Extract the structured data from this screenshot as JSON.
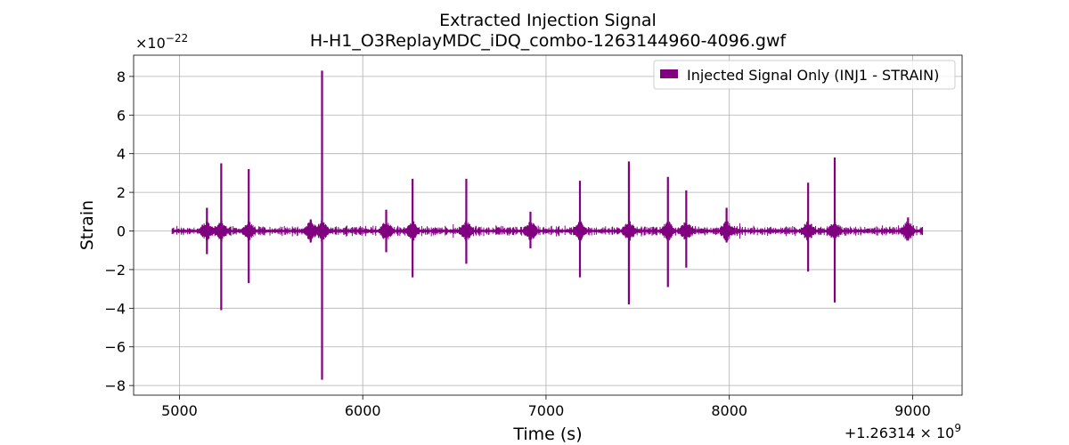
{
  "chart_data": {
    "type": "line",
    "title": "Extracted Injection Signal",
    "subtitle": "H-H1_O3ReplayMDC_iDQ_combo-1263144960-4096.gwf",
    "xlabel": "Time (s)",
    "ylabel": "Strain",
    "x_offset_label": "+1.26314 × 10^9",
    "y_scale_label": "×10^−22",
    "xlim": [
      4750,
      9270
    ],
    "ylim": [
      -8.5,
      9.1
    ],
    "xticks": [
      5000,
      6000,
      7000,
      8000,
      9000
    ],
    "xtick_labels": [
      "5000",
      "6000",
      "7000",
      "8000",
      "9000"
    ],
    "yticks": [
      -8,
      -6,
      -4,
      -2,
      0,
      2,
      4,
      6,
      8
    ],
    "ytick_labels": [
      "−8",
      "−6",
      "−4",
      "−2",
      "0",
      "2",
      "4",
      "6",
      "8"
    ],
    "grid": true,
    "legend_position": "top-right",
    "series": [
      {
        "name": "Injected Signal Only (INJ1 - STRAIN)",
        "color": "#800080",
        "x_range": [
          4960,
          9056
        ],
        "baseline_amplitude": 0.3,
        "spikes": [
          {
            "x": 5150,
            "max": 1.2,
            "min": -1.2
          },
          {
            "x": 5228,
            "max": 3.5,
            "min": -4.1
          },
          {
            "x": 5378,
            "max": 3.2,
            "min": -2.7
          },
          {
            "x": 5716,
            "max": 0.6,
            "min": -0.6
          },
          {
            "x": 5778,
            "max": 8.3,
            "min": -7.7
          },
          {
            "x": 6128,
            "max": 1.1,
            "min": -1.1
          },
          {
            "x": 6272,
            "max": 2.7,
            "min": -2.4
          },
          {
            "x": 6565,
            "max": 2.7,
            "min": -1.7
          },
          {
            "x": 6915,
            "max": 1.0,
            "min": -0.9
          },
          {
            "x": 7185,
            "max": 2.6,
            "min": -2.4
          },
          {
            "x": 7452,
            "max": 3.6,
            "min": -3.8
          },
          {
            "x": 7665,
            "max": 2.8,
            "min": -2.9
          },
          {
            "x": 7765,
            "max": 2.1,
            "min": -1.9
          },
          {
            "x": 7985,
            "max": 1.2,
            "min": -0.6
          },
          {
            "x": 8430,
            "max": 2.5,
            "min": -2.1
          },
          {
            "x": 8575,
            "max": 3.8,
            "min": -3.7
          },
          {
            "x": 8975,
            "max": 0.7,
            "min": -0.5
          }
        ]
      }
    ]
  }
}
